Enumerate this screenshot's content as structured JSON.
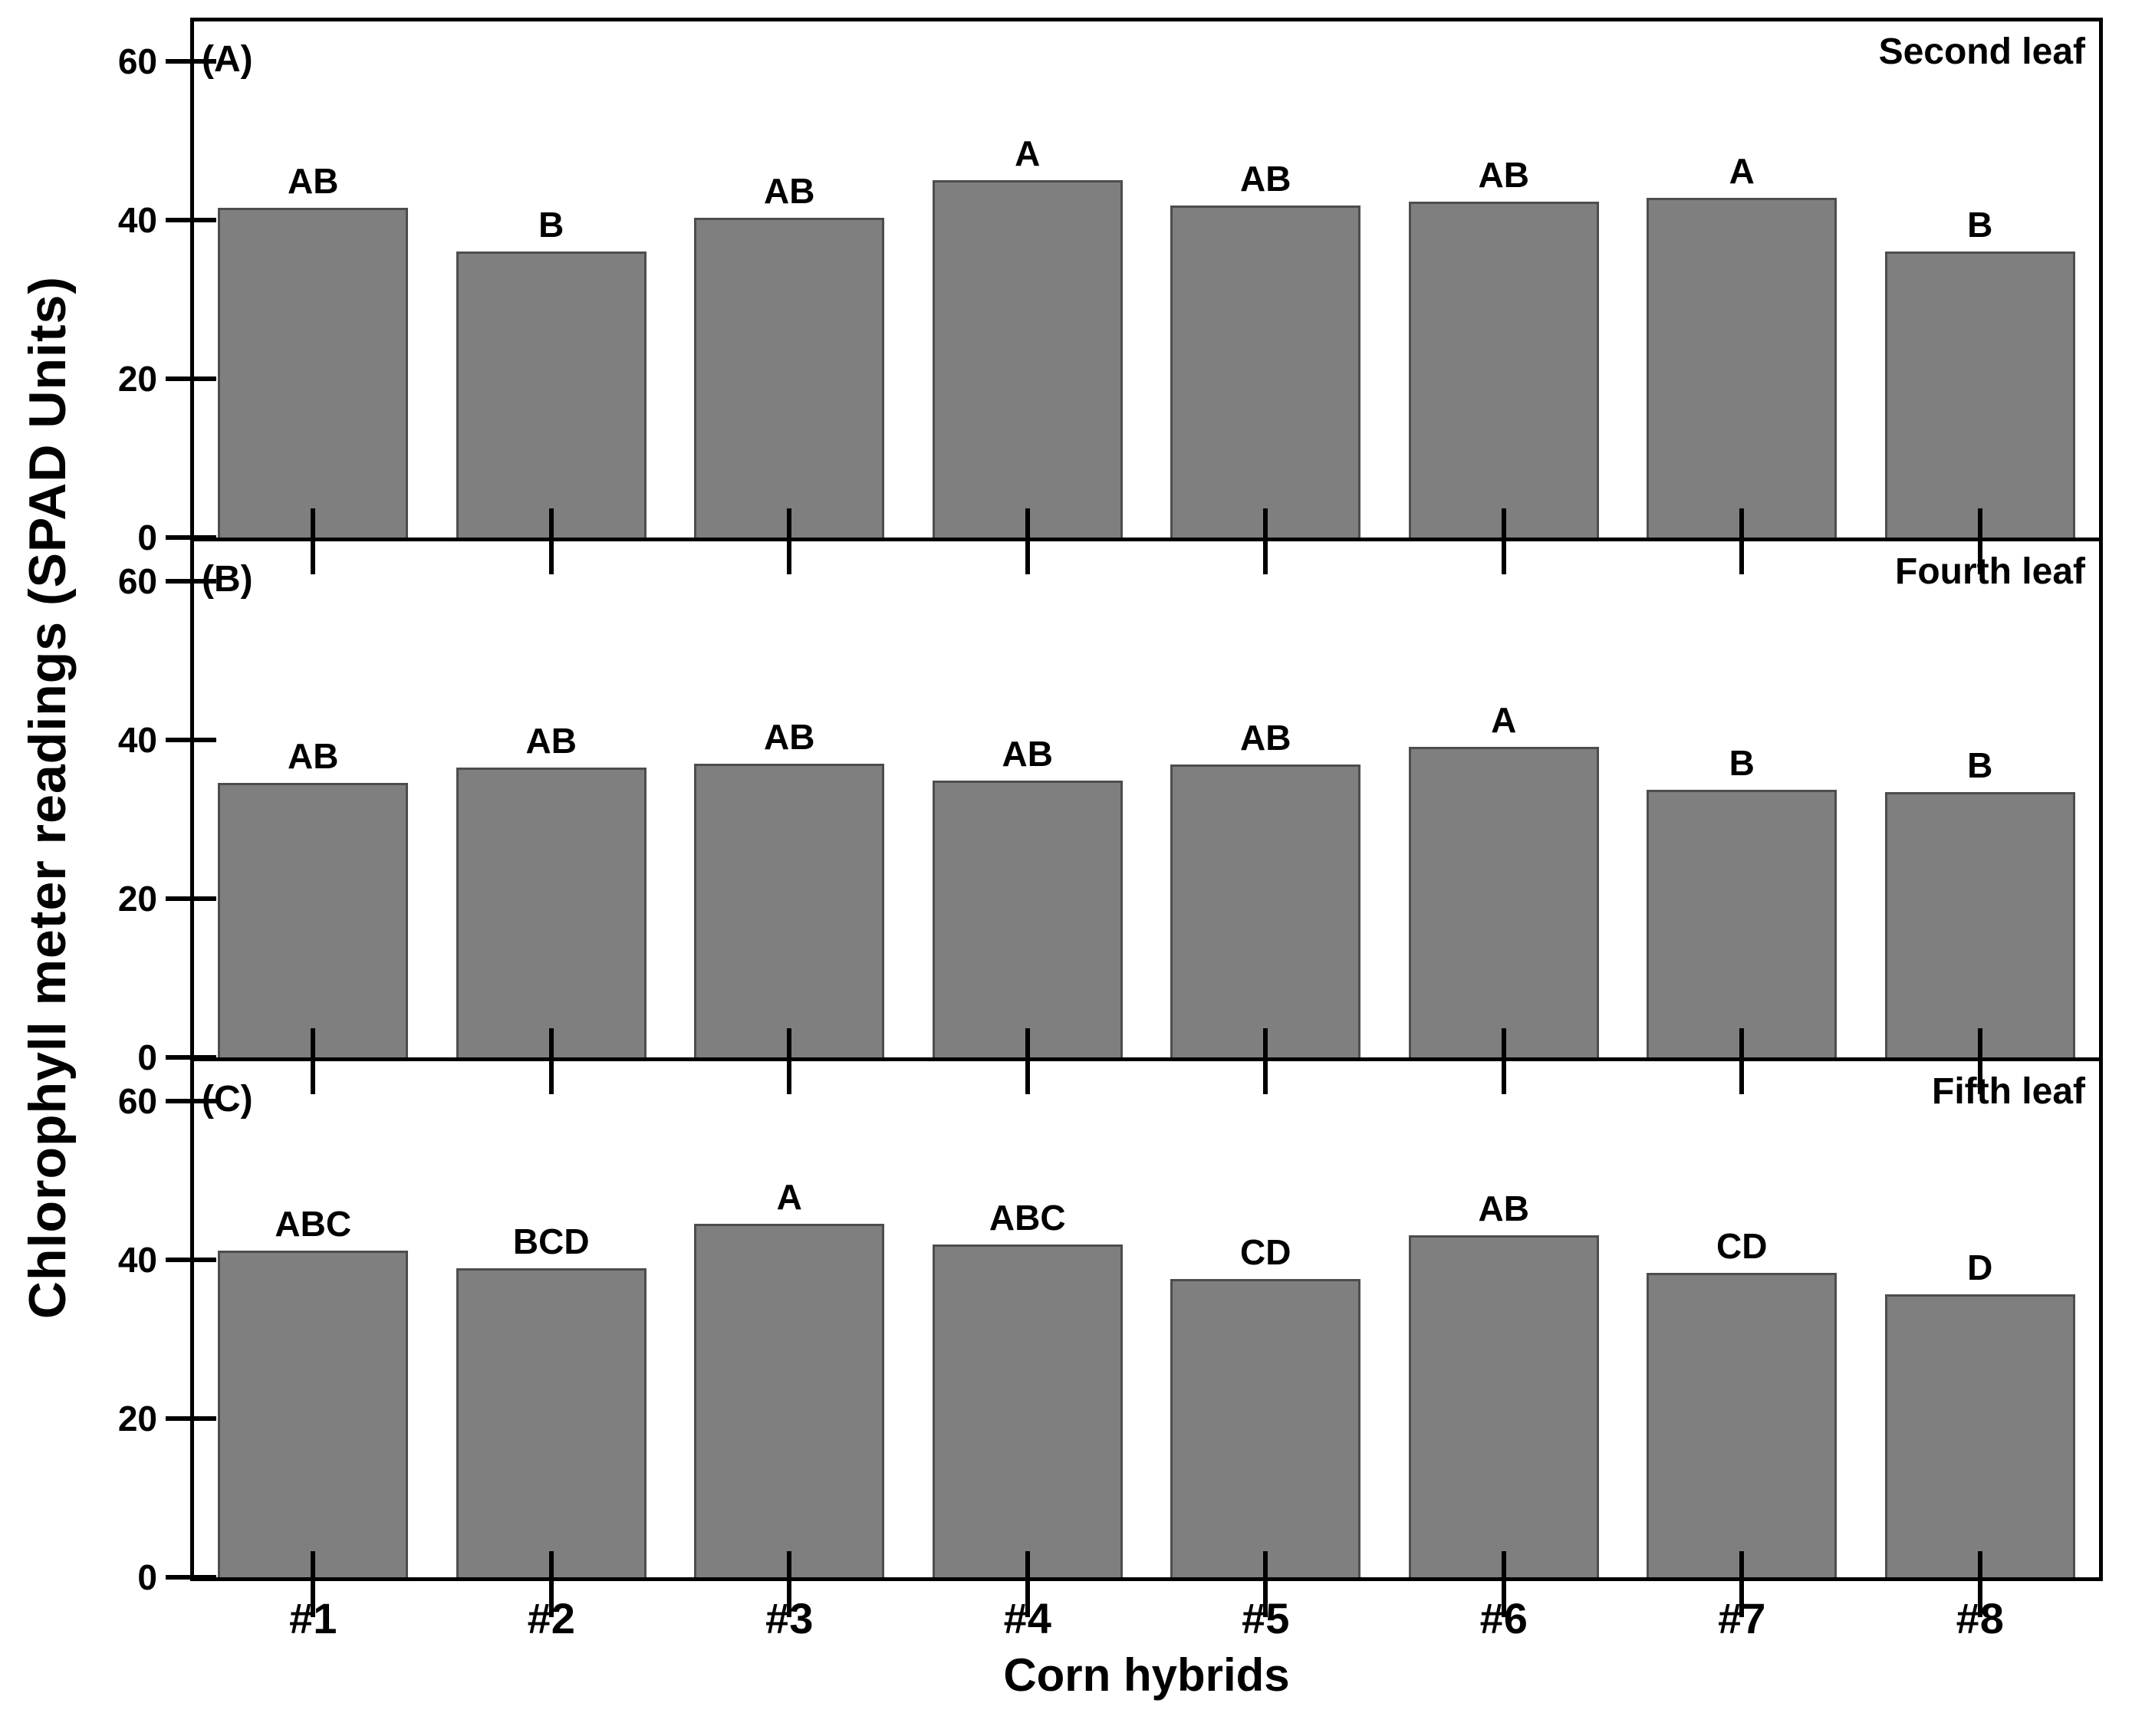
{
  "ylabel": "Chlorophyll meter readings (SPAD Units)",
  "xlabel": "Corn hybrids",
  "colors": {
    "bar_fill": "#7f7f80",
    "bar_border": "#4d4d4d",
    "axis": "#000000",
    "background": "#ffffff"
  },
  "chart_data": [
    {
      "type": "bar",
      "panel_tag": "(A)",
      "title": "Second leaf",
      "categories": [
        "#1",
        "#2",
        "#3",
        "#4",
        "#5",
        "#6",
        "#7",
        "#8"
      ],
      "values": [
        41.5,
        36.0,
        40.3,
        45.0,
        41.8,
        42.3,
        42.8,
        36.0
      ],
      "bar_labels": [
        "AB",
        "B",
        "AB",
        "A",
        "AB",
        "AB",
        "A",
        "B"
      ],
      "ylim": [
        0,
        65
      ],
      "yticks": [
        0,
        20,
        40,
        60
      ],
      "xlabel": "",
      "ylabel": "SPAD Units",
      "grid": false,
      "legend": "none"
    },
    {
      "type": "bar",
      "panel_tag": "(B)",
      "title": "Fourth leaf",
      "categories": [
        "#1",
        "#2",
        "#3",
        "#4",
        "#5",
        "#6",
        "#7",
        "#8"
      ],
      "values": [
        34.6,
        36.5,
        37.0,
        34.9,
        36.9,
        39.1,
        33.7,
        33.4
      ],
      "bar_labels": [
        "AB",
        "AB",
        "AB",
        "AB",
        "AB",
        "A",
        "B",
        "B"
      ],
      "ylim": [
        0,
        65
      ],
      "yticks": [
        0,
        20,
        40,
        60
      ],
      "xlabel": "",
      "ylabel": "SPAD Units",
      "grid": false,
      "legend": "none"
    },
    {
      "type": "bar",
      "panel_tag": "(C)",
      "title": "Fifth leaf",
      "categories": [
        "#1",
        "#2",
        "#3",
        "#4",
        "#5",
        "#6",
        "#7",
        "#8"
      ],
      "values": [
        41.1,
        38.9,
        44.5,
        41.9,
        37.6,
        43.1,
        38.3,
        35.6
      ],
      "bar_labels": [
        "ABC",
        "BCD",
        "A",
        "ABC",
        "CD",
        "AB",
        "CD",
        "D"
      ],
      "ylim": [
        0,
        65
      ],
      "yticks": [
        0,
        20,
        40,
        60
      ],
      "xlabel": "Corn hybrids",
      "ylabel": "SPAD Units",
      "grid": false,
      "legend": "none"
    }
  ]
}
